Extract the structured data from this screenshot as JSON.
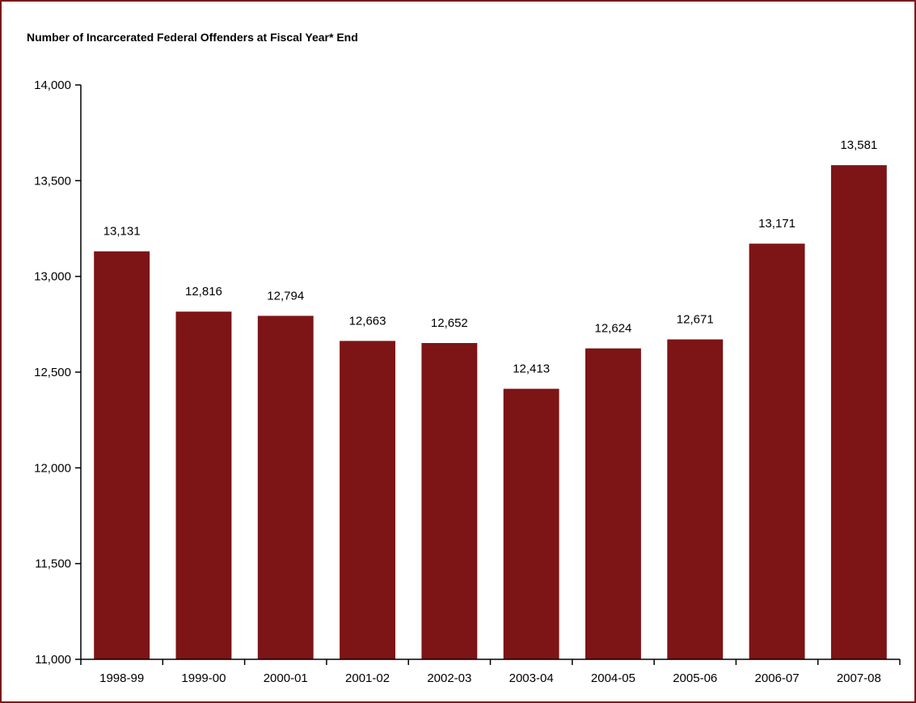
{
  "chart_data": {
    "type": "bar",
    "title": "Number of Incarcerated Federal Offenders at Fiscal Year* End",
    "xlabel": "",
    "ylabel": "",
    "categories": [
      "1998-99",
      "1999-00",
      "2000-01",
      "2001-02",
      "2002-03",
      "2003-04",
      "2004-05",
      "2005-06",
      "2006-07",
      "2007-08"
    ],
    "values": [
      13131,
      12816,
      12794,
      12663,
      12652,
      12413,
      12624,
      12671,
      13171,
      13581
    ],
    "value_labels": [
      "13,131",
      "12,816",
      "12,794",
      "12,663",
      "12,652",
      "12,413",
      "12,624",
      "12,671",
      "13,171",
      "13,581"
    ],
    "ylim": [
      11000,
      14000
    ],
    "yticks": [
      11000,
      11500,
      12000,
      12500,
      13000,
      13500,
      14000
    ],
    "ytick_labels": [
      "11,000",
      "11,500",
      "12,000",
      "12,500",
      "13,000",
      "13,500",
      "14,000"
    ],
    "grid": false,
    "legend": "none",
    "bar_color": "#7d1416",
    "border_color": "#7a1a1c"
  }
}
